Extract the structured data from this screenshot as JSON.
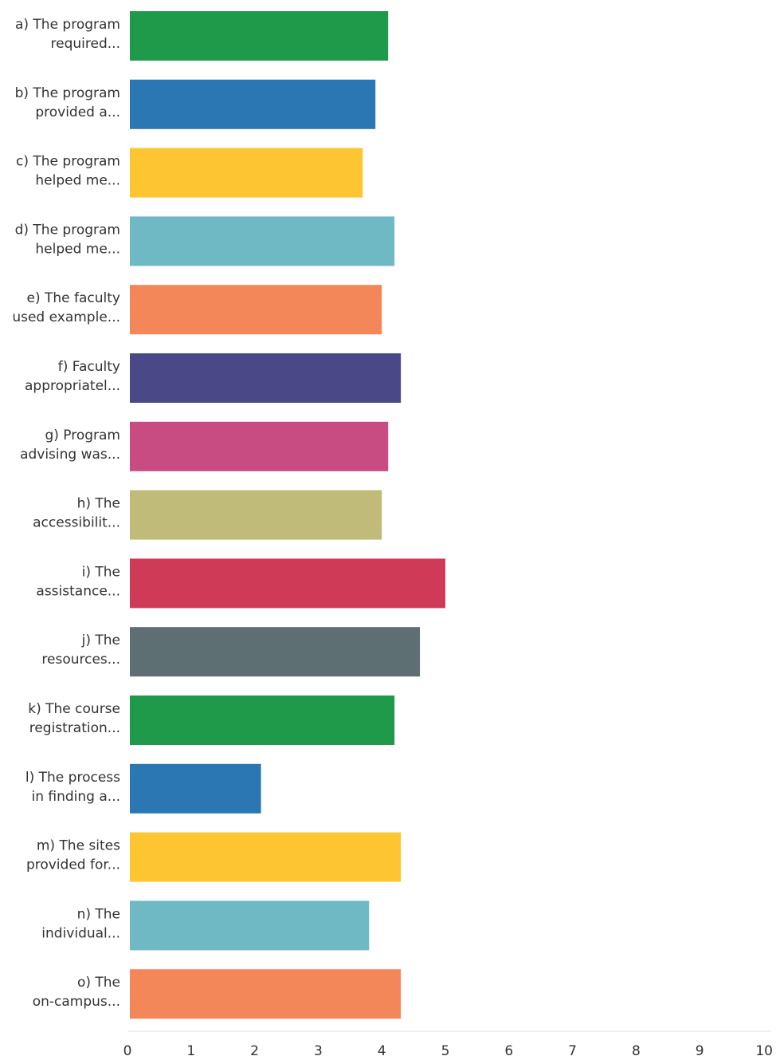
{
  "chart_data": {
    "type": "bar",
    "orientation": "horizontal",
    "title": "",
    "xlabel": "",
    "ylabel": "",
    "xlim": [
      0,
      10
    ],
    "ticks": [
      "0",
      "1",
      "2",
      "3",
      "4",
      "5",
      "6",
      "7",
      "8",
      "9",
      "10"
    ],
    "grid": false,
    "categories": [
      [
        "a) The program",
        "required..."
      ],
      [
        "b) The program",
        "provided a..."
      ],
      [
        "c) The program",
        "helped me..."
      ],
      [
        "d) The program",
        "helped me..."
      ],
      [
        "e) The faculty",
        "used example..."
      ],
      [
        "f) Faculty",
        "appropriatel..."
      ],
      [
        "g) Program",
        "advising was..."
      ],
      [
        "h) The",
        "accessibilit..."
      ],
      [
        "i) The",
        "assistance..."
      ],
      [
        "j) The",
        "resources..."
      ],
      [
        "k) The course",
        "registration..."
      ],
      [
        "l) The process",
        "in finding a..."
      ],
      [
        "m) The sites",
        "provided for..."
      ],
      [
        "n) The",
        "individual..."
      ],
      [
        "o) The",
        "on-campus..."
      ]
    ],
    "values": [
      4.1,
      3.9,
      3.7,
      4.2,
      4.0,
      4.3,
      4.1,
      4.0,
      5.0,
      4.6,
      4.2,
      2.1,
      4.3,
      3.8,
      4.3
    ],
    "colors": [
      "#1f9a4b",
      "#2b77b3",
      "#fdc531",
      "#6fb9c4",
      "#f4875a",
      "#4b4887",
      "#c84c82",
      "#c0bb79",
      "#cf3a56",
      "#5d6f73",
      "#1f9a4b",
      "#2b77b3",
      "#fdc531",
      "#6fb9c4",
      "#f4875a"
    ]
  }
}
